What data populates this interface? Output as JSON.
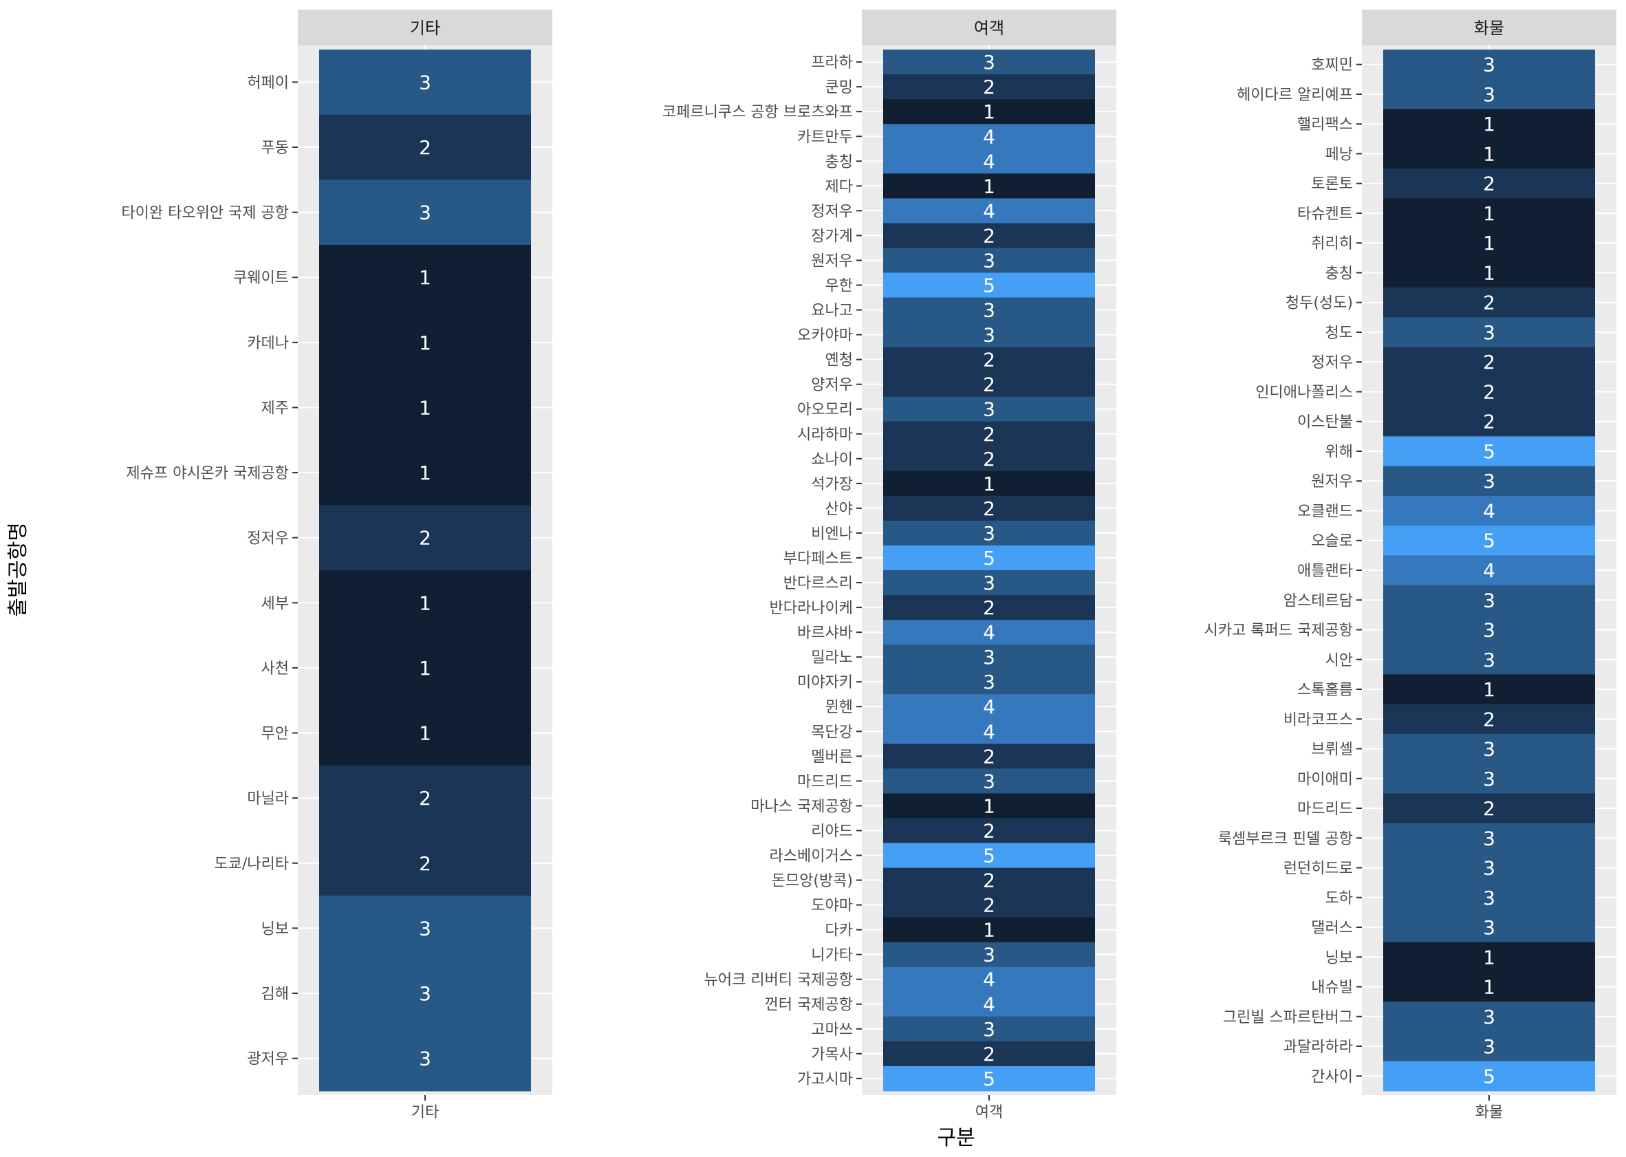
{
  "chart_data": {
    "type": "heatmap",
    "xlabel": "구분",
    "ylabel": "출발공항명",
    "facets": [
      {
        "name": "기타",
        "x_tick": "기타",
        "cells": [
          {
            "y": "허페이",
            "value": 3
          },
          {
            "y": "푸동",
            "value": 2
          },
          {
            "y": "타이완 타오위안 국제 공항",
            "value": 3
          },
          {
            "y": "쿠웨이트",
            "value": 1
          },
          {
            "y": "카데나",
            "value": 1
          },
          {
            "y": "제주",
            "value": 1
          },
          {
            "y": "제슈프 야시온카 국제공항",
            "value": 1
          },
          {
            "y": "정저우",
            "value": 2
          },
          {
            "y": "세부",
            "value": 1
          },
          {
            "y": "사천",
            "value": 1
          },
          {
            "y": "무안",
            "value": 1
          },
          {
            "y": "마닐라",
            "value": 2
          },
          {
            "y": "도쿄/나리타",
            "value": 2
          },
          {
            "y": "닝보",
            "value": 3
          },
          {
            "y": "김해",
            "value": 3
          },
          {
            "y": "광저우",
            "value": 3
          }
        ]
      },
      {
        "name": "여객",
        "x_tick": "여객",
        "cells": [
          {
            "y": "프라하",
            "value": 3
          },
          {
            "y": "쿤밍",
            "value": 2
          },
          {
            "y": "코페르니쿠스 공항 브로츠와프",
            "value": 1
          },
          {
            "y": "카트만두",
            "value": 4
          },
          {
            "y": "충칭",
            "value": 4
          },
          {
            "y": "제다",
            "value": 1
          },
          {
            "y": "정저우",
            "value": 4
          },
          {
            "y": "장가계",
            "value": 2
          },
          {
            "y": "원저우",
            "value": 3
          },
          {
            "y": "우한",
            "value": 5
          },
          {
            "y": "요나고",
            "value": 3
          },
          {
            "y": "오카야마",
            "value": 3
          },
          {
            "y": "옌청",
            "value": 2
          },
          {
            "y": "양저우",
            "value": 2
          },
          {
            "y": "아오모리",
            "value": 3
          },
          {
            "y": "시라하마",
            "value": 2
          },
          {
            "y": "쇼나이",
            "value": 2
          },
          {
            "y": "석가장",
            "value": 1
          },
          {
            "y": "산야",
            "value": 2
          },
          {
            "y": "비엔나",
            "value": 3
          },
          {
            "y": "부다페스트",
            "value": 5
          },
          {
            "y": "반다르스리",
            "value": 3
          },
          {
            "y": "반다라나이케",
            "value": 2
          },
          {
            "y": "바르샤바",
            "value": 4
          },
          {
            "y": "밀라노",
            "value": 3
          },
          {
            "y": "미야자키",
            "value": 3
          },
          {
            "y": "뮌헨",
            "value": 4
          },
          {
            "y": "목단강",
            "value": 4
          },
          {
            "y": "멜버른",
            "value": 2
          },
          {
            "y": "마드리드",
            "value": 3
          },
          {
            "y": "마나스 국제공항",
            "value": 1
          },
          {
            "y": "리야드",
            "value": 2
          },
          {
            "y": "라스베이거스",
            "value": 5
          },
          {
            "y": "돈므앙(방콕)",
            "value": 2
          },
          {
            "y": "도야마",
            "value": 2
          },
          {
            "y": "다카",
            "value": 1
          },
          {
            "y": "니가타",
            "value": 3
          },
          {
            "y": "뉴어크 리버티 국제공항",
            "value": 4
          },
          {
            "y": "껀터 국제공항",
            "value": 4
          },
          {
            "y": "고마쓰",
            "value": 3
          },
          {
            "y": "가목사",
            "value": 2
          },
          {
            "y": "가고시마",
            "value": 5
          }
        ]
      },
      {
        "name": "화물",
        "x_tick": "화물",
        "cells": [
          {
            "y": "호찌민",
            "value": 3
          },
          {
            "y": "헤이다르 알리예프",
            "value": 3
          },
          {
            "y": "핼리팩스",
            "value": 1
          },
          {
            "y": "페낭",
            "value": 1
          },
          {
            "y": "토론토",
            "value": 2
          },
          {
            "y": "타슈켄트",
            "value": 1
          },
          {
            "y": "취리히",
            "value": 1
          },
          {
            "y": "충칭",
            "value": 1
          },
          {
            "y": "청두(성도)",
            "value": 2
          },
          {
            "y": "청도",
            "value": 3
          },
          {
            "y": "정저우",
            "value": 2
          },
          {
            "y": "인디애나폴리스",
            "value": 2
          },
          {
            "y": "이스탄불",
            "value": 2
          },
          {
            "y": "위해",
            "value": 5
          },
          {
            "y": "원저우",
            "value": 3
          },
          {
            "y": "오클랜드",
            "value": 4
          },
          {
            "y": "오슬로",
            "value": 5
          },
          {
            "y": "애틀랜타",
            "value": 4
          },
          {
            "y": "암스테르담",
            "value": 3
          },
          {
            "y": "시카고 록퍼드 국제공항",
            "value": 3
          },
          {
            "y": "시안",
            "value": 3
          },
          {
            "y": "스톡홀름",
            "value": 1
          },
          {
            "y": "비라코프스",
            "value": 2
          },
          {
            "y": "브뤼셀",
            "value": 3
          },
          {
            "y": "마이애미",
            "value": 3
          },
          {
            "y": "마드리드",
            "value": 2
          },
          {
            "y": "룩셈부르크 핀델 공항",
            "value": 3
          },
          {
            "y": "런던히드로",
            "value": 3
          },
          {
            "y": "도하",
            "value": 3
          },
          {
            "y": "댈러스",
            "value": 3
          },
          {
            "y": "닝보",
            "value": 1
          },
          {
            "y": "내슈빌",
            "value": 1
          },
          {
            "y": "그린빌 스파르탄버그",
            "value": 3
          },
          {
            "y": "과달라하라",
            "value": 3
          },
          {
            "y": "간사이",
            "value": 5
          }
        ]
      }
    ],
    "color_scale": {
      "1": "#111f32",
      "2": "#1b3556",
      "3": "#285886",
      "4": "#3678bd",
      "5": "#459ff5"
    },
    "panel_background": "#ebebeb",
    "strip_background": "#d9d9d9",
    "grid": true,
    "legend": "none"
  }
}
